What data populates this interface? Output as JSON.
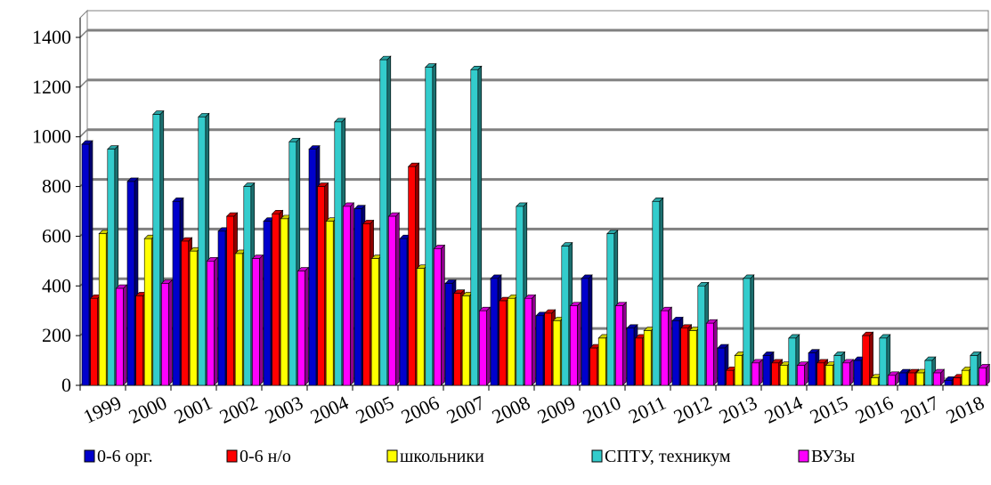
{
  "chart_data": {
    "type": "bar",
    "title": "",
    "xlabel": "",
    "ylabel": "",
    "ylim": [
      0,
      1400
    ],
    "yticks": [
      0,
      200,
      400,
      600,
      800,
      1000,
      1200,
      1400
    ],
    "grid": "horizontal",
    "legend_position": "bottom",
    "categories": [
      "1999",
      "2000",
      "2001",
      "2002",
      "2003",
      "2004",
      "2005",
      "2006",
      "2007",
      "2008",
      "2009",
      "2010",
      "2011",
      "2012",
      "2013",
      "2014",
      "2015",
      "2016",
      "2017",
      "2018"
    ],
    "series": [
      {
        "name": "0-6 орг.",
        "color": "#0000cc",
        "values": [
          970,
          820,
          740,
          620,
          660,
          950,
          710,
          590,
          410,
          430,
          280,
          430,
          230,
          260,
          150,
          120,
          130,
          100,
          50,
          20
        ]
      },
      {
        "name": "0-6 н/о",
        "color": "#ff0000",
        "values": [
          350,
          360,
          580,
          680,
          690,
          800,
          650,
          880,
          370,
          340,
          290,
          150,
          190,
          230,
          60,
          90,
          90,
          200,
          50,
          30
        ]
      },
      {
        "name": "школьники",
        "color": "#ffff00",
        "values": [
          610,
          590,
          540,
          530,
          670,
          660,
          510,
          470,
          360,
          350,
          260,
          190,
          220,
          220,
          120,
          80,
          80,
          30,
          50,
          60
        ]
      },
      {
        "name": "СПТУ, техникум",
        "color": "#33cccc",
        "values": [
          950,
          1090,
          1080,
          800,
          980,
          1060,
          1310,
          1280,
          1270,
          720,
          560,
          610,
          740,
          400,
          430,
          190,
          120,
          190,
          100,
          120
        ]
      },
      {
        "name": "ВУЗы",
        "color": "#ff00ff",
        "values": [
          390,
          410,
          500,
          510,
          460,
          720,
          680,
          550,
          300,
          350,
          320,
          320,
          300,
          250,
          90,
          80,
          90,
          40,
          50,
          70
        ]
      }
    ]
  }
}
